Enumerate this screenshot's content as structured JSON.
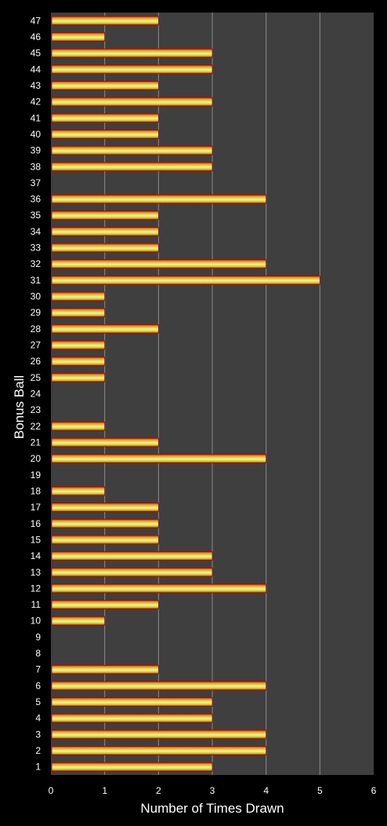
{
  "chart_data": {
    "type": "bar",
    "orientation": "horizontal",
    "xlabel": "Number of Times Drawn",
    "ylabel": "Bonus Ball",
    "xlim": [
      0,
      6
    ],
    "xticks": [
      "0",
      "1",
      "2",
      "3",
      "4",
      "5",
      "6"
    ],
    "grid": "vertical",
    "categories": [
      "1",
      "2",
      "3",
      "4",
      "5",
      "6",
      "7",
      "8",
      "9",
      "10",
      "11",
      "12",
      "13",
      "14",
      "15",
      "16",
      "17",
      "18",
      "19",
      "20",
      "21",
      "22",
      "23",
      "24",
      "25",
      "26",
      "27",
      "28",
      "29",
      "30",
      "31",
      "32",
      "33",
      "34",
      "35",
      "36",
      "37",
      "38",
      "39",
      "40",
      "41",
      "42",
      "43",
      "44",
      "45",
      "46",
      "47"
    ],
    "values": [
      3,
      4,
      4,
      3,
      3,
      4,
      2,
      0,
      0,
      1,
      2,
      4,
      3,
      3,
      2,
      2,
      2,
      1,
      0,
      4,
      2,
      1,
      0,
      0,
      1,
      1,
      1,
      2,
      1,
      1,
      5,
      4,
      2,
      2,
      2,
      4,
      0,
      3,
      3,
      2,
      2,
      3,
      2,
      3,
      3,
      1,
      2
    ],
    "colors": {
      "background": "#000000",
      "plot_area": "#3f3f3f",
      "gridline": "#8a8a8a",
      "bar_outer": "#e01010",
      "bar_inner": "#c8e040",
      "bar_center": "#eef2a0"
    }
  }
}
